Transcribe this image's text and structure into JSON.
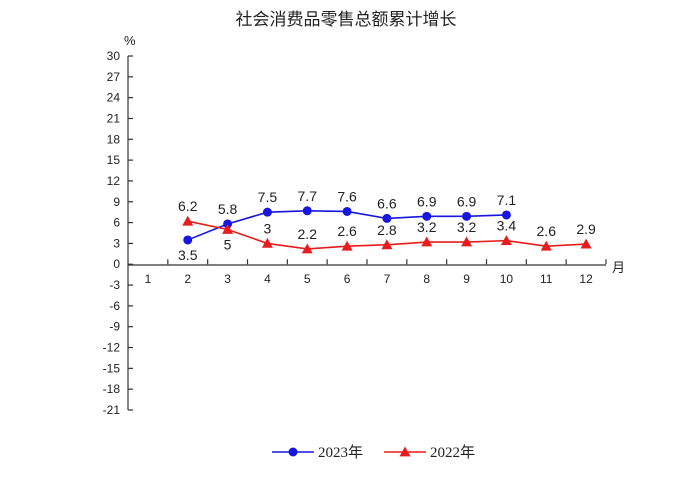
{
  "chart_data": {
    "type": "line",
    "title": "社会消费品零售总额累计增长",
    "ylabel": "%",
    "xlabel": "月",
    "categories": [
      "1",
      "2",
      "3",
      "4",
      "5",
      "6",
      "7",
      "8",
      "9",
      "10",
      "11",
      "12"
    ],
    "ylim": [
      -21,
      30
    ],
    "yticks": [
      30,
      27,
      24,
      21,
      18,
      15,
      12,
      9,
      6,
      3,
      0,
      -3,
      -6,
      -9,
      -12,
      -15,
      -18,
      -21
    ],
    "legend_position": "bottom",
    "series": [
      {
        "name": "2023年",
        "color": "#1616e0",
        "marker": "circle",
        "x": [
          "2",
          "3",
          "4",
          "5",
          "6",
          "7",
          "8",
          "9",
          "10"
        ],
        "values": [
          3.5,
          5.8,
          7.5,
          7.7,
          7.6,
          6.6,
          6.9,
          6.9,
          7.1
        ],
        "label_position": [
          "below",
          "above",
          "above",
          "above",
          "above",
          "above",
          "above",
          "above",
          "above"
        ]
      },
      {
        "name": "2022年",
        "color": "#e81c1c",
        "marker": "triangle",
        "x": [
          "2",
          "3",
          "4",
          "5",
          "6",
          "7",
          "8",
          "9",
          "10",
          "11",
          "12"
        ],
        "values": [
          6.2,
          5,
          3,
          2.2,
          2.6,
          2.8,
          3.2,
          3.2,
          3.4,
          2.6,
          2.9
        ],
        "label_position": [
          "above",
          "below",
          "above",
          "above",
          "above",
          "above",
          "above",
          "above",
          "above",
          "above",
          "above"
        ]
      }
    ]
  }
}
